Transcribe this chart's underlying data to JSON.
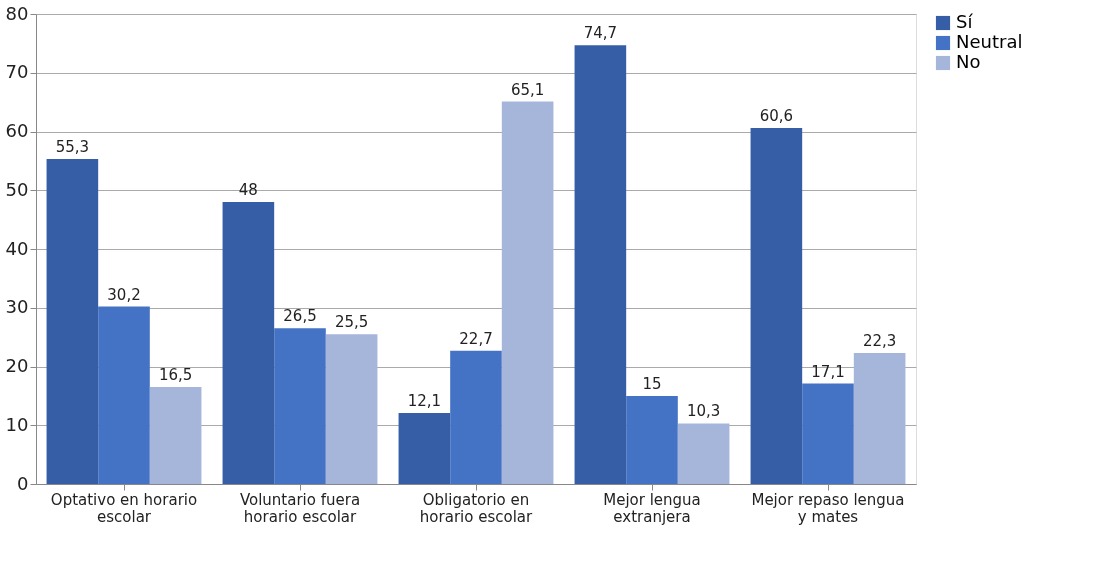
{
  "chart_data": {
    "type": "bar",
    "categories": [
      "Optativo en horario escolar",
      "Voluntario fuera horario escolar",
      "Obligatorio en horario escolar",
      "Mejor lengua extranjera",
      "Mejor repaso lengua y mates"
    ],
    "series": [
      {
        "name": "Sí",
        "color": "#365ea6",
        "values": [
          55.3,
          48,
          12.1,
          74.7,
          60.6
        ],
        "value_labels": [
          "55,3",
          "48",
          "12,1",
          "74,7",
          "60,6"
        ]
      },
      {
        "name": "Neutral",
        "color": "#4472c4",
        "values": [
          30.2,
          26.5,
          22.7,
          15,
          17.1
        ],
        "value_labels": [
          "30,2",
          "26,5",
          "22,7",
          "15",
          "17,1"
        ]
      },
      {
        "name": "No",
        "color": "#a6b5da",
        "values": [
          16.5,
          25.5,
          65.1,
          10.3,
          22.3
        ],
        "value_labels": [
          "16,5",
          "25,5",
          "65,1",
          "10,3",
          "22,3"
        ]
      }
    ],
    "ylim": [
      0,
      80
    ],
    "yticks": [
      0,
      10,
      20,
      30,
      40,
      50,
      60,
      70,
      80
    ],
    "grid": "y",
    "legend": "right"
  }
}
